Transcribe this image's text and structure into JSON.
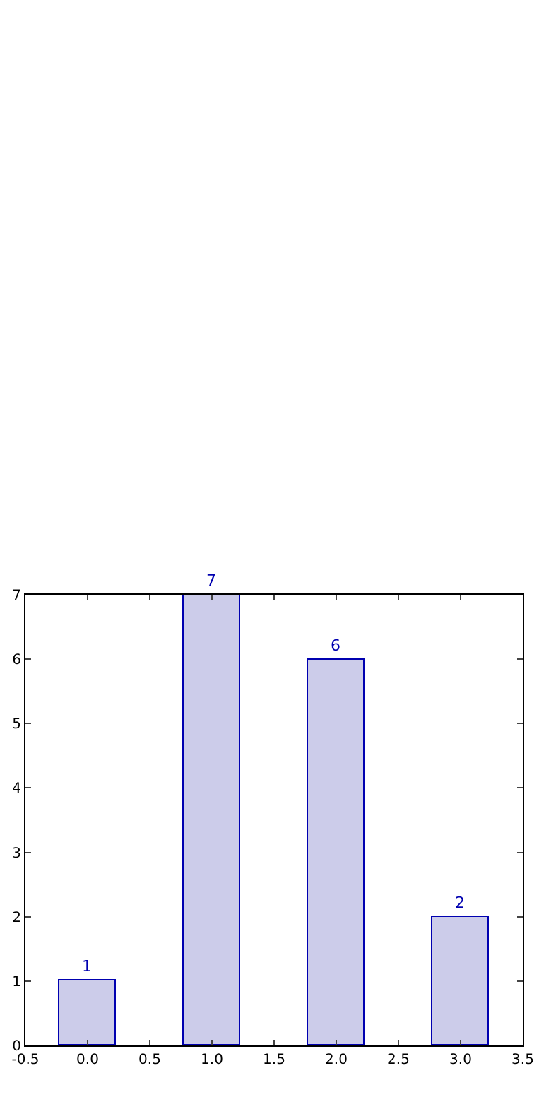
{
  "chart_data": {
    "type": "bar",
    "x": [
      0,
      1,
      2,
      3
    ],
    "values": [
      1,
      7,
      6,
      2
    ],
    "color": "#ccccea",
    "data_labels": true,
    "xlim": [
      -0.5,
      3.5
    ],
    "xticks": [
      -0.5,
      {
        "value": 0,
        "label": "0.0"
      },
      0.5,
      {
        "value": 1,
        "label": "1.0"
      },
      1.5,
      {
        "value": 2,
        "label": "2.0"
      },
      2.5,
      {
        "value": 3,
        "label": "3.0"
      },
      3.5
    ],
    "ylim": [
      0,
      7
    ],
    "yticks": [
      0,
      1,
      2,
      3,
      4,
      5,
      6,
      7
    ],
    "grid": false,
    "legend": false
  }
}
